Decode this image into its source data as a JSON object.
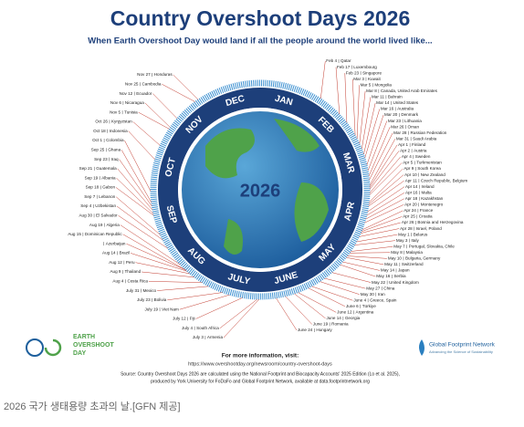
{
  "title": "Country Overshoot Days 2026",
  "subtitle": "When Earth Overshoot Day would land if all the people around the world lived like...",
  "center_label": "2026",
  "months": [
    "JAN",
    "FEB",
    "MAR",
    "APR",
    "MAY",
    "JUNE",
    "JULY",
    "AUG",
    "SEP",
    "OCT",
    "NOV",
    "DEC"
  ],
  "right_countries": [
    {
      "date": "Feb 4",
      "name": "Qatar"
    },
    {
      "date": "Feb 17",
      "name": "Luxembourg"
    },
    {
      "date": "Feb 23",
      "name": "Singapore"
    },
    {
      "date": "Mar 3",
      "name": "Kuwait"
    },
    {
      "date": "Mar 5",
      "name": "Mongolia"
    },
    {
      "date": "Mar 8",
      "name": "Canada, United Arab Emirates"
    },
    {
      "date": "Mar 11",
      "name": "Bahrain"
    },
    {
      "date": "Mar 14",
      "name": "United States"
    },
    {
      "date": "Mar 16",
      "name": "Australia"
    },
    {
      "date": "Mar 20",
      "name": "Denmark"
    },
    {
      "date": "Mar 23",
      "name": "Lithuania"
    },
    {
      "date": "Mar 26",
      "name": "Oman"
    },
    {
      "date": "Mar 28",
      "name": "Russian Federation"
    },
    {
      "date": "Mar 31",
      "name": "Saudi Arabia"
    },
    {
      "date": "Apr 1",
      "name": "Finland"
    },
    {
      "date": "Apr 2",
      "name": "Austria"
    },
    {
      "date": "Apr 4",
      "name": "Sweden"
    },
    {
      "date": "Apr 5",
      "name": "Turkmenistan"
    },
    {
      "date": "Apr 9",
      "name": "South Korea"
    },
    {
      "date": "Apr 10",
      "name": "New Zealand"
    },
    {
      "date": "Apr 11",
      "name": "Czech Republic, Belgium"
    },
    {
      "date": "Apr 14",
      "name": "Ireland"
    },
    {
      "date": "Apr 16",
      "name": "Malta"
    },
    {
      "date": "Apr 18",
      "name": "Kazakhstan"
    },
    {
      "date": "Apr 20",
      "name": "Montenegro"
    },
    {
      "date": "Apr 24",
      "name": "France"
    },
    {
      "date": "Apr 25",
      "name": "Croatia"
    },
    {
      "date": "Apr 26",
      "name": "Bosnia and Herzegovina"
    },
    {
      "date": "Apr 28",
      "name": "Israel, Poland"
    },
    {
      "date": "May 1",
      "name": "Belarus"
    },
    {
      "date": "May 3",
      "name": "Italy"
    },
    {
      "date": "May 7",
      "name": "Portugal, Slovakia, Chile"
    },
    {
      "date": "May 8",
      "name": "Malaysia"
    },
    {
      "date": "May 10",
      "name": "Bulgaria, Germany"
    },
    {
      "date": "May 11",
      "name": "Switzerland"
    },
    {
      "date": "May 14",
      "name": "Japan"
    },
    {
      "date": "May 16",
      "name": "Serbia"
    },
    {
      "date": "May 22",
      "name": "United Kingdom"
    },
    {
      "date": "May 27",
      "name": "China"
    },
    {
      "date": "May 30",
      "name": "Iran"
    },
    {
      "date": "June 4",
      "name": "Greece, Spain"
    },
    {
      "date": "June 6",
      "name": "Türkiye"
    },
    {
      "date": "June 12",
      "name": "Argentina"
    },
    {
      "date": "June 14",
      "name": "Georgia"
    },
    {
      "date": "June 19",
      "name": "Romania"
    },
    {
      "date": "June 24",
      "name": "Hungary"
    }
  ],
  "left_countries": [
    {
      "date": "Nov 27",
      "name": "Honduras"
    },
    {
      "date": "Nov 25",
      "name": "Cambodia"
    },
    {
      "date": "Nov 12",
      "name": "Ecuador"
    },
    {
      "date": "Nov 6",
      "name": "Nicaragua"
    },
    {
      "date": "Nov 5",
      "name": "Tunisia"
    },
    {
      "date": "Oct 26",
      "name": "Kyrgyzstan"
    },
    {
      "date": "Oct 18",
      "name": "Indonesia"
    },
    {
      "date": "Oct 1",
      "name": "Colombia"
    },
    {
      "date": "Sep 25",
      "name": "Ghana"
    },
    {
      "date": "Sep 23",
      "name": "Iraq"
    },
    {
      "date": "Sep 21",
      "name": "Guatemala"
    },
    {
      "date": "Sep 19",
      "name": "Albania"
    },
    {
      "date": "Sep 18",
      "name": "Gabon"
    },
    {
      "date": "Sep 7",
      "name": "Lebanon"
    },
    {
      "date": "Sep 4",
      "name": "Uzbekistan"
    },
    {
      "date": "Aug 30",
      "name": "El Salvador"
    },
    {
      "date": "Aug 19",
      "name": "Algeria"
    },
    {
      "date": "Aug 15",
      "name": "Dominican Republic"
    },
    {
      "name": "Azerbaijan"
    },
    {
      "date": "Aug 14",
      "name": "Brazil"
    },
    {
      "date": "Aug 12",
      "name": "Peru"
    },
    {
      "date": "Aug 9",
      "name": "Thailand"
    },
    {
      "date": "Aug 4",
      "name": "Costa Rica"
    },
    {
      "date": "July 31",
      "name": "Mexico"
    },
    {
      "date": "July 23",
      "name": "Bolivia"
    },
    {
      "date": "July 19",
      "name": "Viet Nam"
    },
    {
      "date": "July 12",
      "name": "Fiji"
    },
    {
      "date": "July 4",
      "name": "South Africa"
    },
    {
      "date": "July 3",
      "name": "Armenia"
    }
  ],
  "footer": {
    "more_info": "For more information, visit:",
    "url": "https://www.overshootday.org/newsroom/country-overshoot-days",
    "source_1": "Source: Country Overshoot Days 2026 are calculated using the National Footprint and Biocapacity Accounts' 2025 Edition (Lo et al. 2025),",
    "source_2": "produced by York University for FoDaFo and Global Footprint Network, available at data.footprintnetwork.org"
  },
  "logo_left": [
    "EARTH",
    "OVERSHOOT",
    "DAY"
  ],
  "logo_right": {
    "name": "Global Footprint Network",
    "tagline": "Advancing the Science of Sustainability"
  },
  "caption": "2026 국가 생태용량 초과의 날.[GFN 제공]"
}
